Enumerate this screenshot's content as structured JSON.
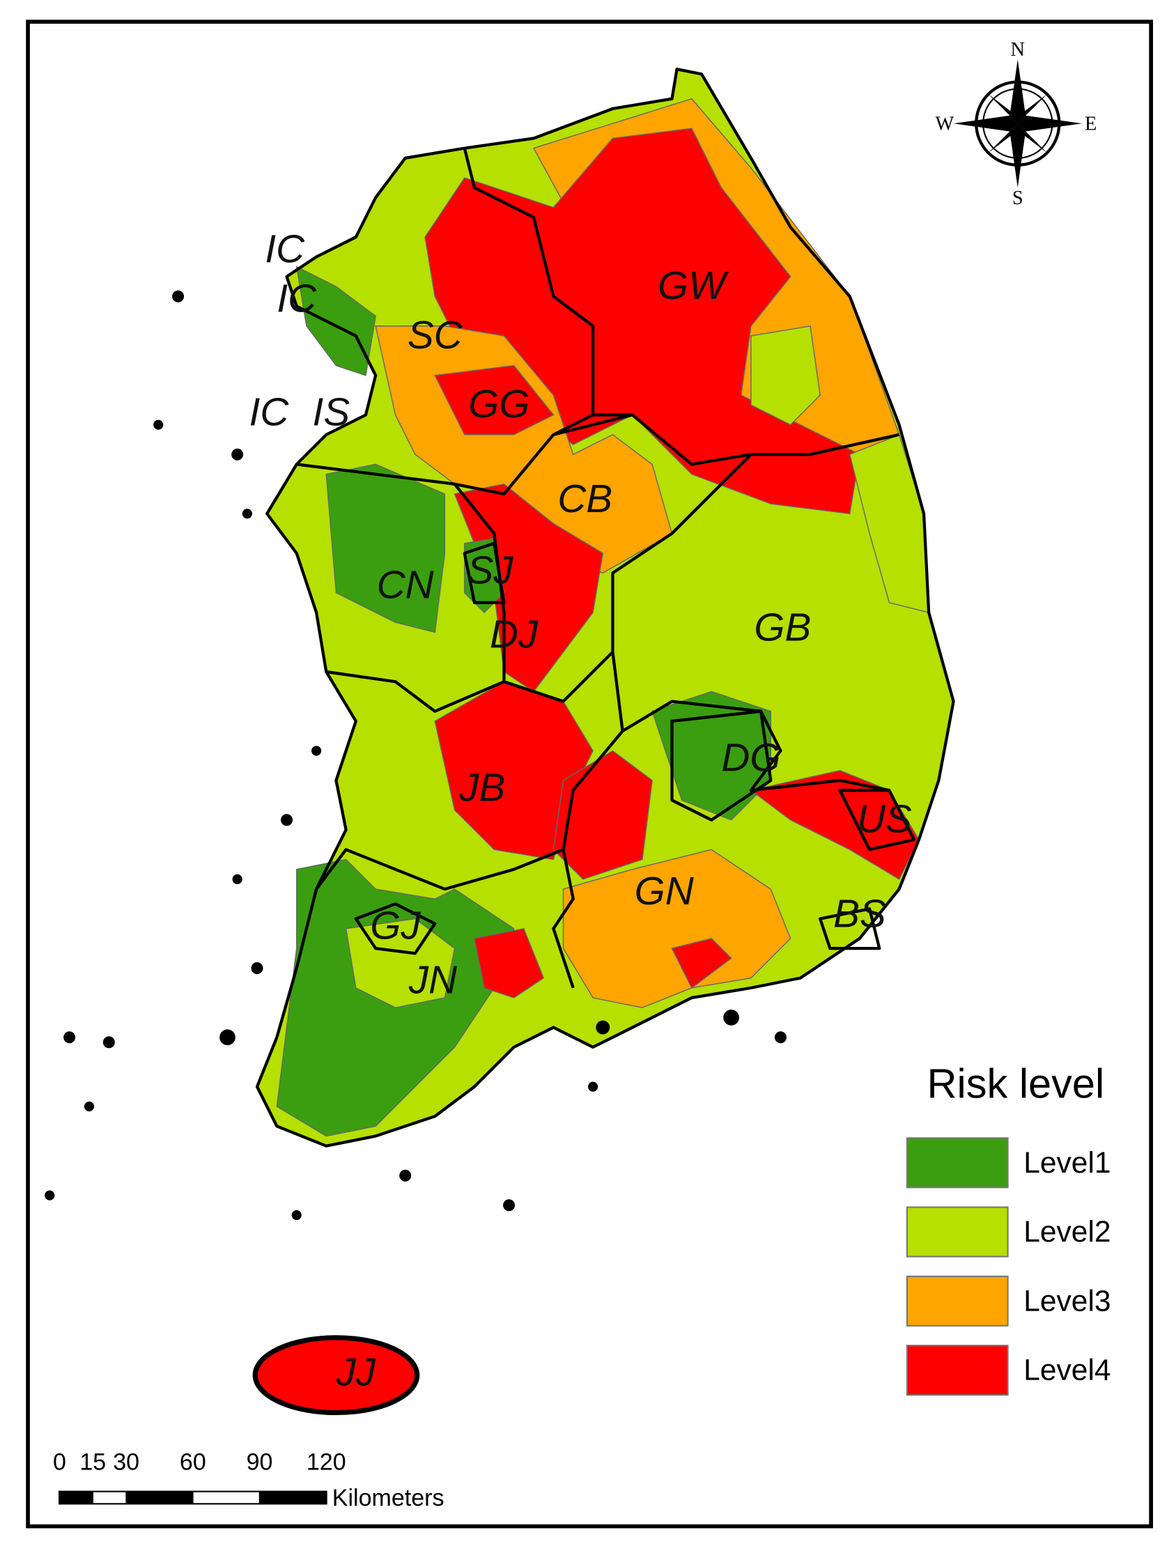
{
  "compass": {
    "north": "N",
    "east": "E",
    "south": "S",
    "west": "W"
  },
  "regions": [
    {
      "label": "IC"
    },
    {
      "label": "IC"
    },
    {
      "label": "SC"
    },
    {
      "label": "GG"
    },
    {
      "label": "IC"
    },
    {
      "label": "IS"
    },
    {
      "label": "GW"
    },
    {
      "label": "CB"
    },
    {
      "label": "CN"
    },
    {
      "label": "SJ"
    },
    {
      "label": "DJ"
    },
    {
      "label": "GB"
    },
    {
      "label": "DG"
    },
    {
      "label": "JB"
    },
    {
      "label": "US"
    },
    {
      "label": "GN"
    },
    {
      "label": "BS"
    },
    {
      "label": "GJ"
    },
    {
      "label": "JN"
    },
    {
      "label": "JJ"
    }
  ],
  "legend": {
    "title": "Risk level",
    "items": [
      {
        "label": "Level1",
        "color": "#3a9e10"
      },
      {
        "label": "Level2",
        "color": "#b5e000"
      },
      {
        "label": "Level3",
        "color": "#ffa500"
      },
      {
        "label": "Level4",
        "color": "#ff0000"
      }
    ]
  },
  "scale_bar": {
    "ticks": [
      0,
      15,
      30,
      60,
      90,
      120
    ],
    "unit": "Kilometers"
  }
}
